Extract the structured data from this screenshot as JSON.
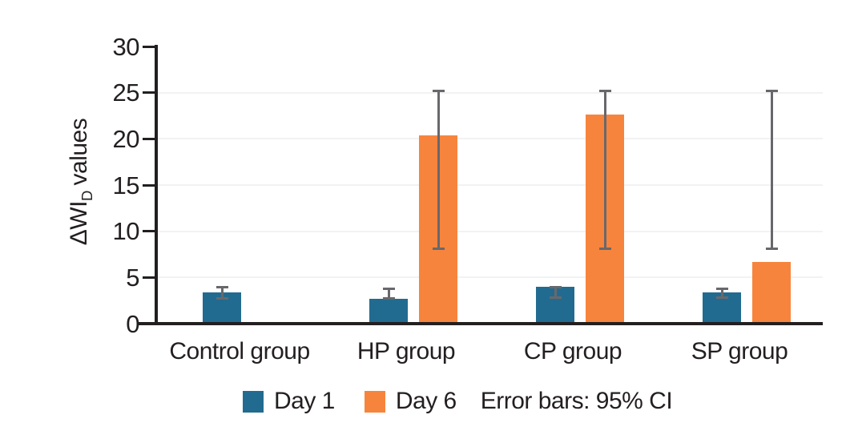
{
  "figure": {
    "background": "#ffffff",
    "text_color": "#231f20",
    "axis_color": "#231f20",
    "grid_color": "#f2f2f2",
    "error_bar_color": "#68686c"
  },
  "chart_data": {
    "type": "bar",
    "title": "",
    "xlabel": "",
    "ylabel": "ΔWI_D values",
    "ylabel_parts": {
      "prefix": "ΔWI",
      "subscript": "D",
      "suffix": "values"
    },
    "ylim": [
      0,
      30
    ],
    "yticks": [
      0,
      5,
      10,
      15,
      20,
      25,
      30
    ],
    "gridline_ticks": [
      5,
      10,
      15,
      20,
      25
    ],
    "grid": "faint-horizontal",
    "categories": [
      "Control group",
      "HP group",
      "CP group",
      "SP group"
    ],
    "series": [
      {
        "name": "Day 1",
        "color": "#226b90",
        "values": [
          3.4,
          2.7,
          4.0,
          3.4
        ],
        "ci_low": [
          2.6,
          2.6,
          2.7,
          2.7
        ],
        "ci_high": [
          4.1,
          3.9,
          4.1,
          3.9
        ]
      },
      {
        "name": "Day 6",
        "color": "#f7843c",
        "values": [
          null,
          20.4,
          22.6,
          6.7
        ],
        "ci_low": [
          null,
          8.0,
          8.0,
          8.0
        ],
        "ci_high": [
          null,
          25.3,
          25.3,
          25.3
        ]
      }
    ],
    "legend_position": "bottom",
    "note": "Error bars: 95% CI"
  }
}
